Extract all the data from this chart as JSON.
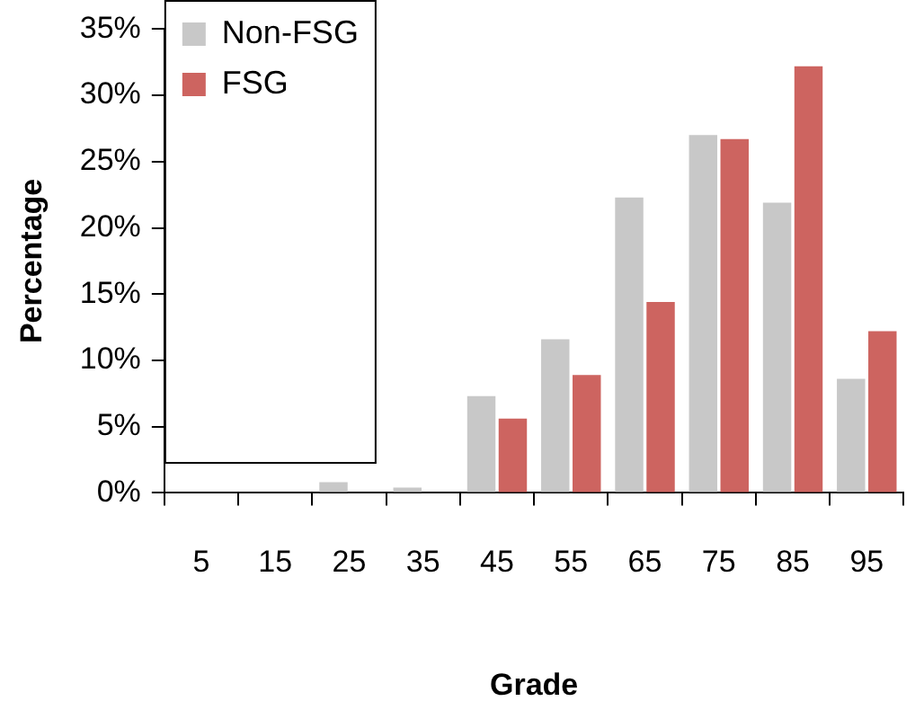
{
  "chart_data": {
    "type": "bar",
    "xlabel": "Grade",
    "ylabel": "Percentage",
    "categories": [
      "5",
      "15",
      "25",
      "35",
      "45",
      "55",
      "65",
      "75",
      "85",
      "95"
    ],
    "series": [
      {
        "name": "Non-FSG",
        "color": "#c8c8c8",
        "values": [
          0,
          0,
          0.8,
          0.4,
          7.3,
          11.6,
          22.3,
          27.0,
          21.9,
          8.6
        ]
      },
      {
        "name": "FSG",
        "color": "#cd6460",
        "values": [
          0,
          0,
          0,
          0,
          5.6,
          8.9,
          14.4,
          26.7,
          32.2,
          12.2
        ]
      }
    ],
    "ylim": [
      0,
      35
    ],
    "yticks": [
      {
        "value": 0,
        "label": "0%"
      },
      {
        "value": 5,
        "label": "5%"
      },
      {
        "value": 10,
        "label": "10%"
      },
      {
        "value": 15,
        "label": "15%"
      },
      {
        "value": 20,
        "label": "20%"
      },
      {
        "value": 25,
        "label": "25%"
      },
      {
        "value": 30,
        "label": "30%"
      },
      {
        "value": 35,
        "label": "35%"
      }
    ],
    "grid": false,
    "legend": "top left"
  }
}
